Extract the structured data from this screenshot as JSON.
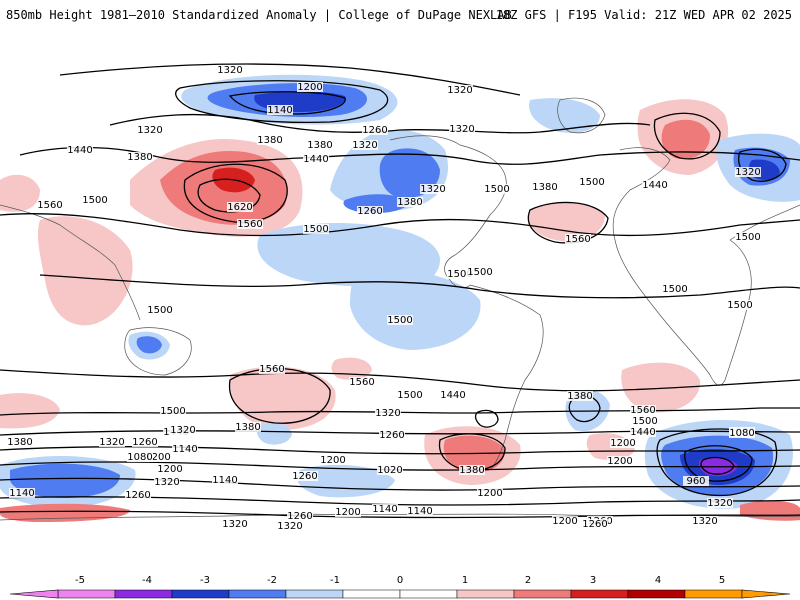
{
  "header": {
    "title_left": "850mb Height 1981–2010 Standardized Anomaly | College of DuPage NEXLAB",
    "title_right": "18Z GFS | F195 Valid: 21Z WED APR 02 2025"
  },
  "colors": {
    "anom_neg5": "#ee82ee",
    "anom_neg4": "#8a2be2",
    "anom_neg3": "#1e3cc8",
    "anom_neg2": "#4f7cf0",
    "anom_neg1": "#bcd6f8",
    "anom_pos1": "#f7c7c7",
    "anom_pos2": "#ee7a7a",
    "anom_pos3": "#d62020",
    "anom_pos4": "#b00000",
    "anom_pos5": "#ff9a00",
    "contour": "#000000",
    "coastline": "#555555"
  },
  "colorbar": {
    "ticks": [
      "-5",
      "-4",
      "-3",
      "-2",
      "-1",
      "0",
      "1",
      "2",
      "3",
      "4",
      "5"
    ]
  },
  "contour_labels": [
    "1320",
    "1200",
    "1140",
    "1320",
    "1260",
    "1320",
    "1380",
    "1320",
    "1320",
    "1380",
    "1440",
    "1560",
    "1500",
    "1320",
    "1260",
    "1380",
    "1620",
    "1560",
    "1500",
    "1440",
    "1380",
    "1500",
    "1380",
    "1500",
    "1440",
    "1320",
    "1560",
    "1500",
    "1500",
    "1500",
    "1500",
    "1500",
    "1500",
    "1500",
    "1560",
    "1560",
    "1500",
    "1440",
    "1320",
    "1380",
    "1560",
    "1500",
    "1440",
    "1380",
    "1500",
    "1440",
    "1380",
    "1260",
    "1200",
    "1320",
    "1260",
    "1320",
    "1080",
    "1200",
    "1140",
    "1020",
    "1260",
    "1200",
    "1380",
    "1200",
    "1140",
    "1260",
    "1320",
    "1080",
    "1200",
    "1140",
    "1320",
    "1260",
    "1200",
    "1140",
    "1320",
    "1260",
    "1320",
    "1200",
    "1260",
    "1200",
    "1140",
    "960",
    "1320",
    "1080"
  ]
}
